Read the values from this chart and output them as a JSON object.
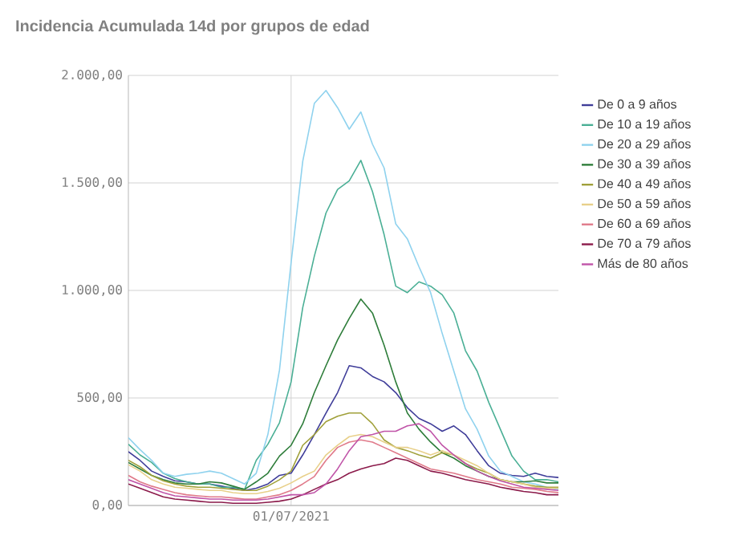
{
  "chart_data": {
    "type": "line",
    "title": "Incidencia Acumulada 14d por grupos de edad",
    "categories": [
      null,
      null,
      null,
      null,
      null,
      null,
      null,
      null,
      null,
      null,
      null,
      null,
      null,
      null,
      "01/07/2021",
      null,
      null,
      null,
      null,
      null,
      null,
      null,
      null,
      null,
      null,
      null,
      null,
      null,
      null,
      null,
      null,
      null,
      null,
      null,
      null,
      null,
      null,
      null
    ],
    "series": [
      {
        "name": "De 0 a 9 años",
        "color": "#3f3d99",
        "values": [
          250,
          210,
          160,
          135,
          115,
          110,
          100,
          100,
          90,
          80,
          70,
          80,
          100,
          140,
          150,
          235,
          330,
          430,
          525,
          650,
          640,
          600,
          575,
          525,
          455,
          405,
          380,
          345,
          370,
          330,
          255,
          185,
          150,
          140,
          135,
          150,
          135,
          130
        ]
      },
      {
        "name": "De 10 a 19 años",
        "color": "#4aaf95",
        "values": [
          285,
          235,
          200,
          150,
          125,
          110,
          100,
          100,
          85,
          85,
          75,
          210,
          285,
          385,
          575,
          920,
          1160,
          1360,
          1470,
          1510,
          1605,
          1460,
          1260,
          1020,
          990,
          1040,
          1020,
          980,
          895,
          720,
          625,
          480,
          355,
          230,
          160,
          120,
          120,
          110
        ]
      },
      {
        "name": "De 20 a 29 años",
        "color": "#8fd2ee",
        "values": [
          315,
          260,
          210,
          150,
          135,
          145,
          150,
          160,
          150,
          125,
          100,
          150,
          330,
          630,
          1130,
          1600,
          1870,
          1930,
          1850,
          1750,
          1830,
          1680,
          1570,
          1310,
          1240,
          1110,
          990,
          800,
          625,
          450,
          355,
          230,
          160,
          135,
          110,
          100,
          85,
          75
        ]
      },
      {
        "name": "De 30 a 39 años",
        "color": "#2e7d3a",
        "values": [
          200,
          170,
          140,
          120,
          105,
          100,
          100,
          110,
          105,
          90,
          75,
          110,
          150,
          230,
          280,
          380,
          525,
          650,
          770,
          870,
          960,
          895,
          745,
          575,
          430,
          355,
          295,
          245,
          220,
          185,
          160,
          135,
          120,
          110,
          110,
          115,
          105,
          105
        ]
      },
      {
        "name": "De 40 a 49 años",
        "color": "#a0a03a",
        "values": [
          210,
          180,
          140,
          115,
          100,
          90,
          85,
          85,
          80,
          75,
          70,
          70,
          90,
          120,
          160,
          280,
          330,
          390,
          415,
          430,
          430,
          380,
          305,
          270,
          255,
          235,
          220,
          245,
          235,
          195,
          170,
          150,
          120,
          110,
          100,
          90,
          85,
          85
        ]
      },
      {
        "name": "De 50 a 59 años",
        "color": "#e8d08a",
        "values": [
          190,
          160,
          120,
          100,
          85,
          80,
          75,
          70,
          70,
          60,
          55,
          55,
          65,
          80,
          105,
          135,
          160,
          235,
          280,
          320,
          330,
          320,
          295,
          270,
          270,
          255,
          235,
          255,
          235,
          210,
          185,
          150,
          120,
          110,
          100,
          85,
          80,
          80
        ]
      },
      {
        "name": "De 60 a 69 años",
        "color": "#e07a8a",
        "values": [
          140,
          110,
          90,
          75,
          60,
          50,
          45,
          40,
          40,
          35,
          30,
          30,
          40,
          50,
          70,
          100,
          135,
          210,
          270,
          295,
          305,
          295,
          270,
          245,
          220,
          195,
          170,
          160,
          150,
          135,
          120,
          110,
          100,
          85,
          80,
          75,
          65,
          60
        ]
      },
      {
        "name": "De 70 a 79 años",
        "color": "#8b1a4a",
        "values": [
          100,
          80,
          60,
          40,
          30,
          25,
          20,
          15,
          15,
          10,
          10,
          10,
          15,
          20,
          30,
          50,
          75,
          100,
          120,
          150,
          170,
          185,
          195,
          220,
          210,
          185,
          160,
          150,
          135,
          120,
          110,
          100,
          85,
          75,
          65,
          60,
          50,
          50
        ]
      },
      {
        "name": "Más de 80 años",
        "color": "#c054a8",
        "values": [
          120,
          100,
          80,
          60,
          45,
          40,
          35,
          30,
          30,
          25,
          25,
          25,
          30,
          40,
          50,
          50,
          60,
          100,
          170,
          255,
          320,
          330,
          345,
          345,
          370,
          380,
          345,
          280,
          235,
          195,
          160,
          135,
          115,
          100,
          85,
          80,
          75,
          70
        ]
      }
    ],
    "ylim": [
      0,
      2000
    ],
    "yticks": [
      {
        "value": 0,
        "label": "0,00"
      },
      {
        "value": 500,
        "label": "500,00"
      },
      {
        "value": 1000,
        "label": "1.000,00"
      },
      {
        "value": 1500,
        "label": "1.500,00"
      },
      {
        "value": 2000,
        "label": "2.000,00"
      }
    ],
    "grid": true,
    "legend": "right"
  }
}
